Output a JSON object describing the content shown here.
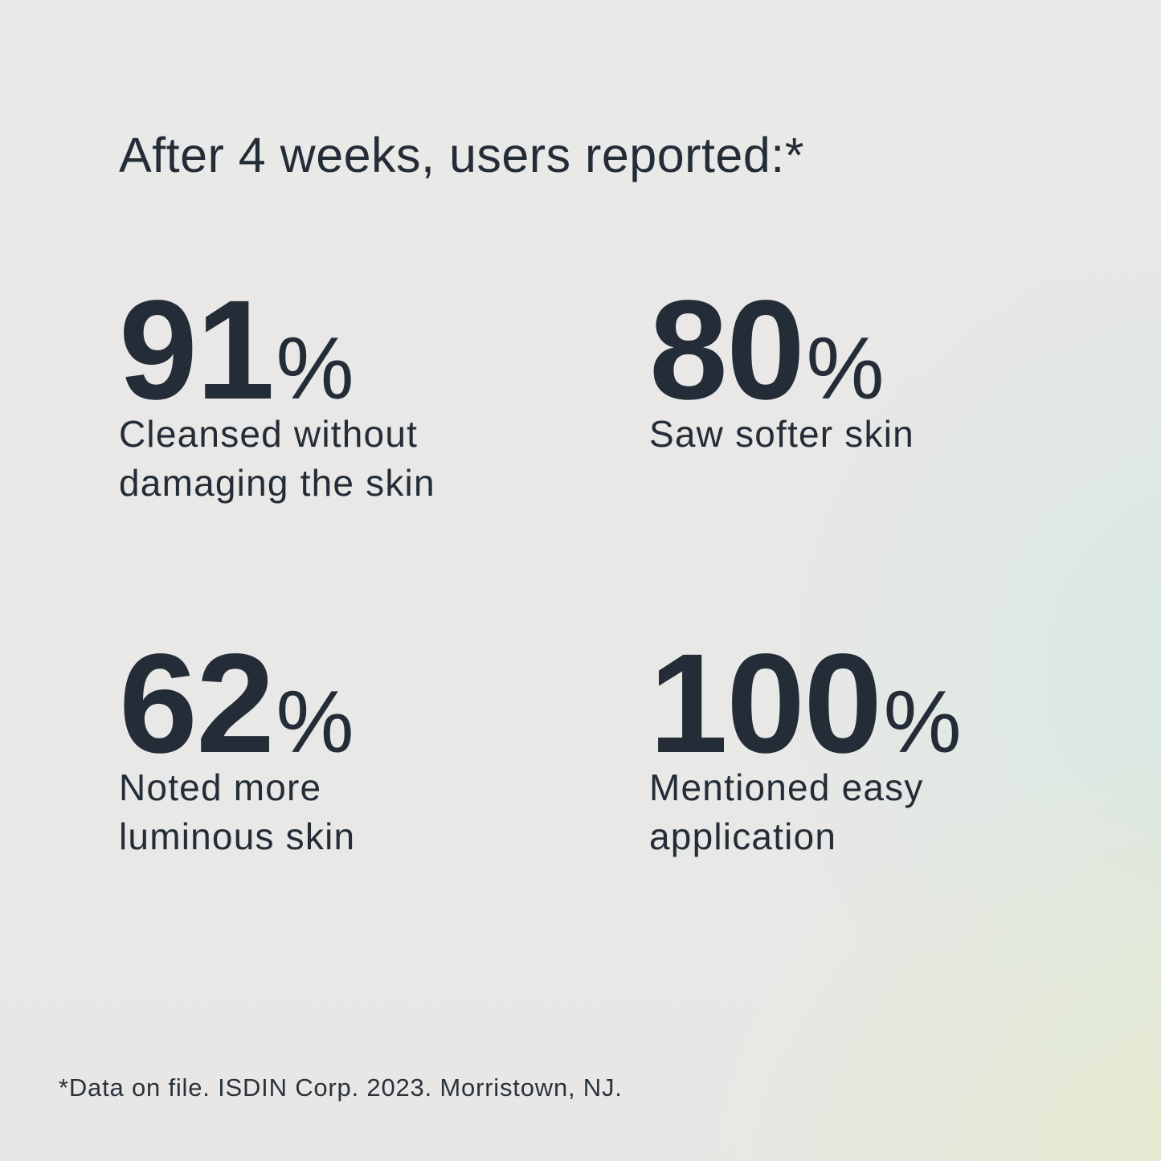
{
  "header": {
    "title": "After 4 weeks, users reported:*"
  },
  "stats": [
    {
      "value": "91",
      "unit": "%",
      "label": "Cleansed without damaging the skin",
      "label_lines": [
        "Cleansed without",
        "damaging the skin"
      ]
    },
    {
      "value": "80",
      "unit": "%",
      "label": "Saw softer skin",
      "label_lines": [
        "Saw softer skin"
      ]
    },
    {
      "value": "62",
      "unit": "%",
      "label": "Noted more luminous skin",
      "label_lines": [
        "Noted more",
        "luminous skin"
      ]
    },
    {
      "value": "100",
      "unit": "%",
      "label": "Mentioned easy application",
      "label_lines": [
        "Mentioned easy",
        "application"
      ]
    }
  ],
  "footer": {
    "footnote": "*Data on file. ISDIN Corp. 2023. Morristown, NJ."
  },
  "colors": {
    "text": "#242d37",
    "background_base": "#e8e7e5",
    "tint_mint": "#d6e8e0",
    "tint_green": "#e4eccd"
  }
}
